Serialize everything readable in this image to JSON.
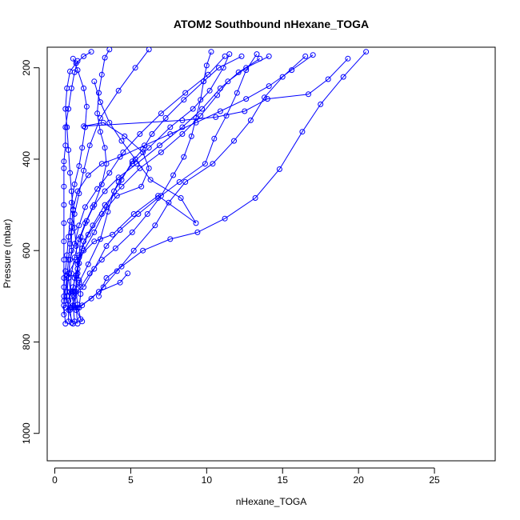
{
  "chart_data": {
    "type": "line",
    "title": "ATOM2 Southbound nHexane_TOGA",
    "xlabel": "nHexane_TOGA",
    "ylabel": "Pressure (mbar)",
    "xlim": [
      -0.5,
      29
    ],
    "ylim": [
      1060,
      155
    ],
    "y_reversed": true,
    "x_ticks": [
      0,
      5,
      10,
      15,
      20,
      25
    ],
    "y_ticks": [
      200,
      400,
      600,
      800,
      1000
    ],
    "grid": false,
    "series_color": "#0000ff",
    "series": [
      {
        "values": [
          [
            1.8,
            755
          ],
          [
            1.4,
            730
          ],
          [
            1.1,
            700
          ],
          [
            0.9,
            660
          ],
          [
            1.0,
            620
          ],
          [
            1.3,
            585
          ],
          [
            1.6,
            545
          ],
          [
            2.0,
            505
          ],
          [
            2.8,
            465
          ],
          [
            3.6,
            430
          ],
          [
            4.5,
            385
          ],
          [
            5.6,
            345
          ],
          [
            7.0,
            300
          ],
          [
            8.6,
            255
          ],
          [
            10.1,
            215
          ],
          [
            11.2,
            175
          ]
        ]
      },
      {
        "values": [
          [
            1.2,
            760
          ],
          [
            0.9,
            730
          ],
          [
            0.8,
            700
          ],
          [
            0.9,
            650
          ],
          [
            1.1,
            600
          ],
          [
            1.1,
            560
          ],
          [
            1.3,
            520
          ],
          [
            1.6,
            475
          ],
          [
            1.9,
            425
          ],
          [
            2.3,
            370
          ],
          [
            3.0,
            310
          ],
          [
            4.2,
            250
          ],
          [
            5.3,
            200
          ],
          [
            6.2,
            160
          ]
        ]
      },
      {
        "values": [
          [
            1.5,
            725
          ],
          [
            2.4,
            705
          ],
          [
            3.2,
            680
          ],
          [
            4.1,
            645
          ],
          [
            5.2,
            600
          ],
          [
            6.6,
            545
          ],
          [
            7.5,
            495
          ],
          [
            8.6,
            450
          ],
          [
            10.4,
            410
          ],
          [
            11.8,
            360
          ],
          [
            12.9,
            315
          ],
          [
            13.8,
            265
          ],
          [
            15.0,
            220
          ],
          [
            16.5,
            175
          ]
        ]
      },
      {
        "values": [
          [
            1.0,
            730
          ],
          [
            1.8,
            720
          ],
          [
            2.9,
            690
          ],
          [
            4.3,
            670
          ],
          [
            4.8,
            650
          ]
        ]
      },
      {
        "values": [
          [
            1.9,
            680
          ],
          [
            2.6,
            640
          ],
          [
            3.4,
            590
          ],
          [
            4.3,
            555
          ],
          [
            5.5,
            520
          ],
          [
            6.8,
            485
          ],
          [
            8.2,
            450
          ],
          [
            9.9,
            410
          ],
          [
            10.5,
            355
          ],
          [
            11.3,
            305
          ],
          [
            12.0,
            255
          ],
          [
            12.6,
            205
          ],
          [
            13.3,
            170
          ]
        ]
      },
      {
        "values": [
          [
            0.7,
            760
          ],
          [
            0.6,
            720
          ],
          [
            0.8,
            655
          ],
          [
            1.4,
            620
          ],
          [
            2.6,
            580
          ],
          [
            3.8,
            565
          ],
          [
            5.2,
            520
          ],
          [
            6.8,
            480
          ],
          [
            9.3,
            540
          ],
          [
            8.3,
            485
          ],
          [
            6.3,
            445
          ],
          [
            5.3,
            400
          ],
          [
            4.4,
            360
          ],
          [
            3.6,
            320
          ],
          [
            3.0,
            275
          ],
          [
            2.6,
            230
          ]
        ]
      },
      {
        "values": [
          [
            2.9,
            700
          ],
          [
            3.4,
            660
          ],
          [
            4.4,
            635
          ],
          [
            5.8,
            600
          ],
          [
            7.6,
            575
          ],
          [
            9.4,
            560
          ],
          [
            11.2,
            530
          ],
          [
            13.2,
            485
          ],
          [
            14.8,
            422
          ],
          [
            16.3,
            340
          ],
          [
            17.5,
            280
          ],
          [
            19.0,
            220
          ],
          [
            20.5,
            165
          ]
        ]
      },
      {
        "values": [
          [
            1.3,
            755
          ],
          [
            1.2,
            720
          ],
          [
            1.3,
            690
          ],
          [
            1.6,
            670
          ],
          [
            2.2,
            630
          ],
          [
            3.0,
            575
          ],
          [
            3.5,
            515
          ],
          [
            3.9,
            470
          ],
          [
            4.4,
            445
          ],
          [
            5.1,
            405
          ],
          [
            5.8,
            378
          ],
          [
            6.4,
            345
          ],
          [
            7.3,
            310
          ],
          [
            8.5,
            270
          ],
          [
            9.8,
            230
          ],
          [
            10.8,
            200
          ],
          [
            12.3,
            175
          ]
        ]
      },
      {
        "values": [
          [
            0.9,
            755
          ],
          [
            0.9,
            710
          ],
          [
            1.2,
            680
          ],
          [
            1.5,
            640
          ],
          [
            1.8,
            595
          ],
          [
            2.2,
            565
          ],
          [
            3.1,
            520
          ],
          [
            4.1,
            480
          ],
          [
            5.7,
            460
          ],
          [
            6.2,
            420
          ],
          [
            5.8,
            385
          ],
          [
            4.6,
            350
          ],
          [
            3.2,
            320
          ],
          [
            1.9,
            328
          ],
          [
            8.4,
            315
          ],
          [
            10.6,
            308
          ],
          [
            12.5,
            295
          ],
          [
            14.0,
            268
          ],
          [
            16.7,
            258
          ],
          [
            18.0,
            225
          ],
          [
            19.3,
            180
          ]
        ]
      },
      {
        "values": [
          [
            1.5,
            760
          ],
          [
            1.4,
            725
          ],
          [
            1.2,
            690
          ],
          [
            1.3,
            660
          ],
          [
            1.6,
            628
          ],
          [
            1.9,
            600
          ],
          [
            2.6,
            560
          ],
          [
            3.4,
            505
          ],
          [
            4.2,
            450
          ],
          [
            5.1,
            410
          ],
          [
            6.2,
            375
          ],
          [
            7.6,
            330
          ],
          [
            9.1,
            290
          ],
          [
            10.2,
            250
          ],
          [
            11.1,
            200
          ],
          [
            11.5,
            170
          ]
        ]
      },
      {
        "values": [
          [
            1.7,
            750
          ],
          [
            1.5,
            718
          ],
          [
            1.4,
            690
          ],
          [
            1.4,
            655
          ],
          [
            1.6,
            615
          ],
          [
            1.9,
            580
          ],
          [
            2.5,
            545
          ],
          [
            3.3,
            500
          ],
          [
            4.4,
            460
          ],
          [
            5.6,
            420
          ],
          [
            7.0,
            385
          ],
          [
            8.4,
            345
          ],
          [
            9.6,
            305
          ],
          [
            10.7,
            260
          ],
          [
            11.4,
            230
          ],
          [
            12.6,
            200
          ],
          [
            14.1,
            175
          ]
        ]
      },
      {
        "values": [
          [
            1.1,
            758
          ],
          [
            1.0,
            725
          ],
          [
            1.0,
            690
          ],
          [
            1.1,
            650
          ],
          [
            1.3,
            615
          ],
          [
            1.6,
            575
          ],
          [
            2.0,
            540
          ],
          [
            2.5,
            505
          ],
          [
            3.3,
            470
          ],
          [
            4.2,
            440
          ],
          [
            5.4,
            410
          ],
          [
            6.9,
            370
          ],
          [
            8.4,
            330
          ],
          [
            9.7,
            290
          ],
          [
            10.9,
            245
          ],
          [
            12.1,
            210
          ],
          [
            13.5,
            180
          ]
        ]
      },
      {
        "values": [
          [
            1.6,
            725
          ],
          [
            1.7,
            695
          ],
          [
            1.6,
            665
          ],
          [
            1.5,
            630
          ],
          [
            1.4,
            590
          ],
          [
            1.3,
            550
          ],
          [
            1.2,
            512
          ],
          [
            1.1,
            470
          ],
          [
            1.0,
            430
          ],
          [
            0.9,
            380
          ],
          [
            0.8,
            330
          ],
          [
            0.7,
            290
          ],
          [
            0.8,
            245
          ],
          [
            1.0,
            208
          ],
          [
            1.4,
            190
          ],
          [
            1.9,
            175
          ],
          [
            2.4,
            165
          ]
        ]
      },
      {
        "values": [
          [
            0.7,
            725
          ],
          [
            0.8,
            690
          ],
          [
            0.8,
            655
          ],
          [
            0.9,
            620
          ],
          [
            1.0,
            585
          ],
          [
            1.1,
            548
          ],
          [
            1.2,
            510
          ],
          [
            1.5,
            470
          ],
          [
            2.2,
            435
          ],
          [
            3.1,
            410
          ],
          [
            4.3,
            395
          ],
          [
            5.9,
            370
          ],
          [
            7.6,
            345
          ],
          [
            9.3,
            320
          ],
          [
            10.9,
            295
          ],
          [
            12.6,
            268
          ],
          [
            14.1,
            240
          ],
          [
            15.6,
            205
          ],
          [
            17.0,
            172
          ]
        ]
      },
      {
        "values": [
          [
            1.3,
            725
          ],
          [
            1.4,
            690
          ],
          [
            1.5,
            650
          ],
          [
            1.6,
            610
          ],
          [
            1.7,
            570
          ],
          [
            2.1,
            535
          ],
          [
            2.6,
            500
          ],
          [
            3.1,
            455
          ],
          [
            3.4,
            410
          ],
          [
            3.3,
            375
          ],
          [
            3.0,
            340
          ],
          [
            2.8,
            300
          ],
          [
            2.9,
            255
          ],
          [
            3.1,
            215
          ],
          [
            3.3,
            178
          ],
          [
            3.6,
            160
          ]
        ]
      },
      {
        "values": [
          [
            0.6,
            710
          ],
          [
            0.6,
            680
          ],
          [
            0.7,
            645
          ],
          [
            0.8,
            610
          ],
          [
            0.9,
            570
          ],
          [
            1.0,
            535
          ],
          [
            1.1,
            495
          ],
          [
            1.3,
            455
          ],
          [
            1.6,
            415
          ],
          [
            1.8,
            375
          ],
          [
            2.0,
            330
          ],
          [
            2.1,
            285
          ],
          [
            1.9,
            245
          ],
          [
            1.5,
            205
          ],
          [
            1.2,
            180
          ]
        ]
      },
      {
        "values": [
          [
            1.1,
            725
          ],
          [
            1.3,
            700
          ],
          [
            1.7,
            680
          ],
          [
            2.3,
            650
          ],
          [
            3.1,
            620
          ],
          [
            4.0,
            595
          ],
          [
            5.1,
            560
          ],
          [
            6.1,
            520
          ],
          [
            7.0,
            480
          ],
          [
            7.8,
            435
          ],
          [
            8.5,
            395
          ],
          [
            9.0,
            350
          ],
          [
            9.3,
            310
          ],
          [
            9.6,
            270
          ],
          [
            9.8,
            230
          ],
          [
            10.0,
            195
          ],
          [
            10.3,
            165
          ]
        ]
      },
      {
        "values": [
          [
            0.6,
            740
          ],
          [
            0.6,
            700
          ],
          [
            0.6,
            660
          ],
          [
            0.6,
            620
          ],
          [
            0.6,
            580
          ],
          [
            0.6,
            540
          ],
          [
            0.6,
            500
          ],
          [
            0.6,
            460
          ],
          [
            0.6,
            420
          ],
          [
            0.6,
            405
          ],
          [
            0.7,
            370
          ],
          [
            0.7,
            330
          ],
          [
            0.9,
            290
          ],
          [
            1.1,
            245
          ],
          [
            1.3,
            210
          ],
          [
            1.5,
            185
          ]
        ]
      }
    ]
  }
}
